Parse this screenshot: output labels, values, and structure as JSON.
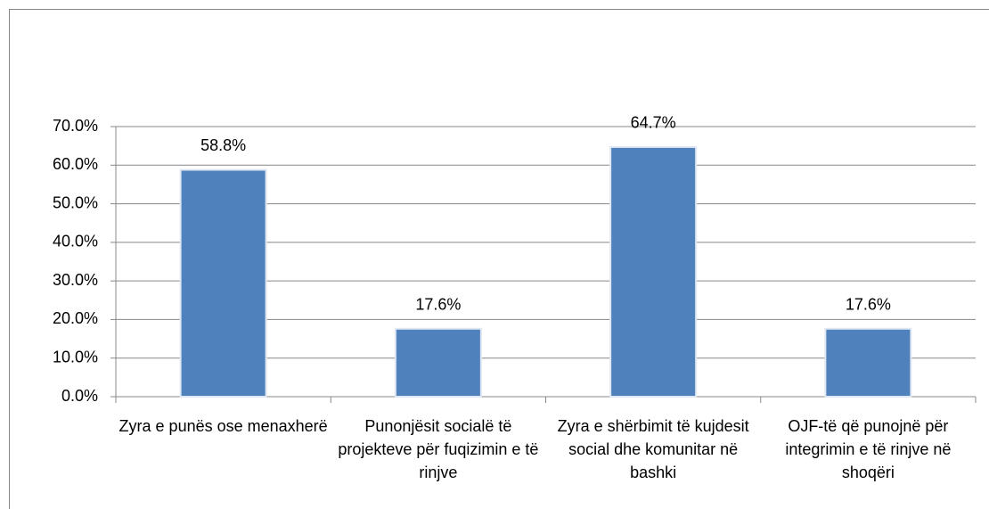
{
  "chart_data": {
    "type": "bar",
    "categories": [
      "Zyra e punës ose menaxherë",
      "Punonjësit socialë të projekteve për fuqizimin e të rinjve",
      "Zyra e shërbimit të kujdesit social dhe komunitar në bashki",
      "OJF-të që punojnë për integrimin e të rinjve në shoqëri"
    ],
    "values": [
      58.8,
      17.6,
      64.7,
      17.6
    ],
    "value_labels": [
      "58.8%",
      "17.6%",
      "64.7%",
      "17.6%"
    ],
    "color": "#4f81bd",
    "ylim": [
      0,
      70
    ],
    "yticks": [
      {
        "value": 0,
        "label": "0.0%"
      },
      {
        "value": 10,
        "label": "10.0%"
      },
      {
        "value": 20,
        "label": "20.0%"
      },
      {
        "value": 30,
        "label": "30.0%"
      },
      {
        "value": 40,
        "label": "40.0%"
      },
      {
        "value": 50,
        "label": "50.0%"
      },
      {
        "value": 60,
        "label": "60.0%"
      },
      {
        "value": 70,
        "label": "70.0%"
      }
    ],
    "grid": true
  }
}
